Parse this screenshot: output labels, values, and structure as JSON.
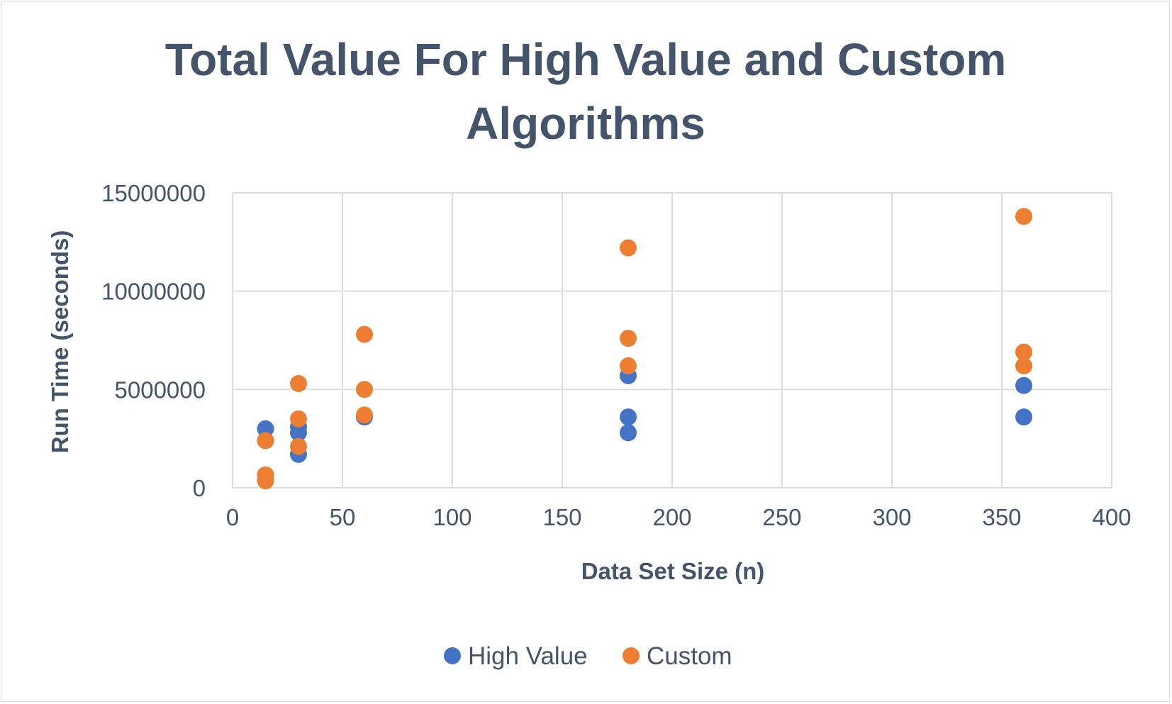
{
  "chart_data": {
    "type": "scatter",
    "title_lines": [
      "Total Value For High Value and Custom",
      "Algorithms"
    ],
    "xlabel": "Data Set Size (n)",
    "ylabel": "Run Time (seconds)",
    "xlim": [
      0,
      400
    ],
    "ylim": [
      0,
      15000000
    ],
    "x_ticks": [
      0,
      50,
      100,
      150,
      200,
      250,
      300,
      350,
      400
    ],
    "y_ticks": [
      0,
      5000000,
      10000000,
      15000000
    ],
    "x_tick_labels": [
      "0",
      "50",
      "100",
      "150",
      "200",
      "250",
      "300",
      "350",
      "400"
    ],
    "y_tick_labels": [
      "0",
      "5000000",
      "10000000",
      "15000000"
    ],
    "grid": true,
    "legend_position": "bottom",
    "series": [
      {
        "name": "High Value",
        "color": "#4472c4",
        "points": [
          [
            15,
            3000000
          ],
          [
            15,
            2400000
          ],
          [
            15,
            650000
          ],
          [
            15,
            380000
          ],
          [
            30,
            3100000
          ],
          [
            30,
            2800000
          ],
          [
            30,
            1700000
          ],
          [
            60,
            3600000
          ],
          [
            180,
            5700000
          ],
          [
            180,
            3600000
          ],
          [
            180,
            2800000
          ],
          [
            360,
            5200000
          ],
          [
            360,
            3600000
          ]
        ]
      },
      {
        "name": "Custom",
        "color": "#ed7d31",
        "points": [
          [
            15,
            2400000
          ],
          [
            15,
            650000
          ],
          [
            15,
            350000
          ],
          [
            30,
            5300000
          ],
          [
            30,
            3500000
          ],
          [
            30,
            2100000
          ],
          [
            60,
            7800000
          ],
          [
            60,
            5000000
          ],
          [
            60,
            3700000
          ],
          [
            180,
            12200000
          ],
          [
            180,
            7600000
          ],
          [
            180,
            6200000
          ],
          [
            360,
            13800000
          ],
          [
            360,
            6900000
          ],
          [
            360,
            6200000
          ]
        ]
      }
    ]
  }
}
